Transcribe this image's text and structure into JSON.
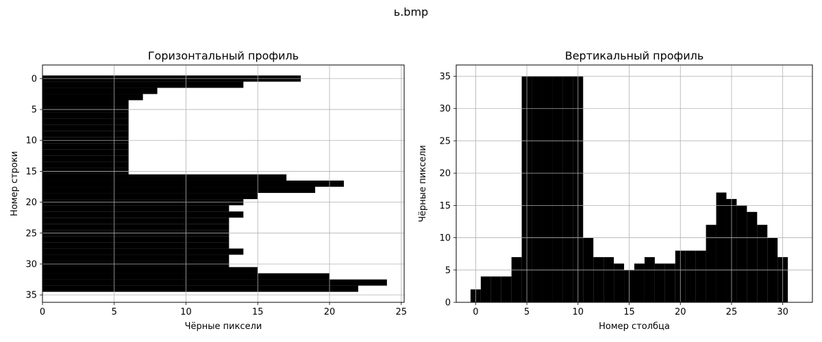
{
  "suptitle": "ь.bmp",
  "chart_data": [
    {
      "type": "bar",
      "orientation": "horizontal",
      "title": "Горизонтальный профиль",
      "xlabel": "Чёрные пиксели",
      "ylabel": "Номер строки",
      "xlim": [
        0,
        25.2
      ],
      "ylim": [
        36.2,
        -2.2
      ],
      "xticks": [
        0,
        5,
        10,
        15,
        20,
        25
      ],
      "yticks": [
        0,
        5,
        10,
        15,
        20,
        25,
        30,
        35
      ],
      "grid": true,
      "color": "#000000",
      "categories": [
        0,
        1,
        2,
        3,
        4,
        5,
        6,
        7,
        8,
        9,
        10,
        11,
        12,
        13,
        14,
        15,
        16,
        17,
        18,
        19,
        20,
        21,
        22,
        23,
        24,
        25,
        26,
        27,
        28,
        29,
        30,
        31,
        32,
        33,
        34
      ],
      "values": [
        18,
        14,
        8,
        7,
        6,
        6,
        6,
        6,
        6,
        6,
        6,
        6,
        6,
        6,
        6,
        6,
        17,
        21,
        19,
        15,
        14,
        13,
        14,
        13,
        13,
        13,
        13,
        13,
        14,
        13,
        13,
        15,
        20,
        24,
        22
      ]
    },
    {
      "type": "bar",
      "orientation": "vertical",
      "title": "Вертикальный профиль",
      "xlabel": "Номер столбца",
      "ylabel": "Чёрные пиксели",
      "xlim": [
        -1.9,
        32.9
      ],
      "ylim": [
        0,
        36.75
      ],
      "xticks": [
        0,
        5,
        10,
        15,
        20,
        25,
        30
      ],
      "yticks": [
        0,
        5,
        10,
        15,
        20,
        25,
        30,
        35
      ],
      "grid": true,
      "color": "#000000",
      "categories": [
        0,
        1,
        2,
        3,
        4,
        5,
        6,
        7,
        8,
        9,
        10,
        11,
        12,
        13,
        14,
        15,
        16,
        17,
        18,
        19,
        20,
        21,
        22,
        23,
        24,
        25,
        26,
        27,
        28,
        29,
        30
      ],
      "values": [
        2,
        4,
        4,
        4,
        7,
        35,
        35,
        35,
        35,
        35,
        35,
        10,
        7,
        7,
        6,
        5,
        6,
        7,
        6,
        6,
        8,
        8,
        8,
        12,
        17,
        16,
        15,
        14,
        12,
        10,
        7
      ]
    }
  ]
}
